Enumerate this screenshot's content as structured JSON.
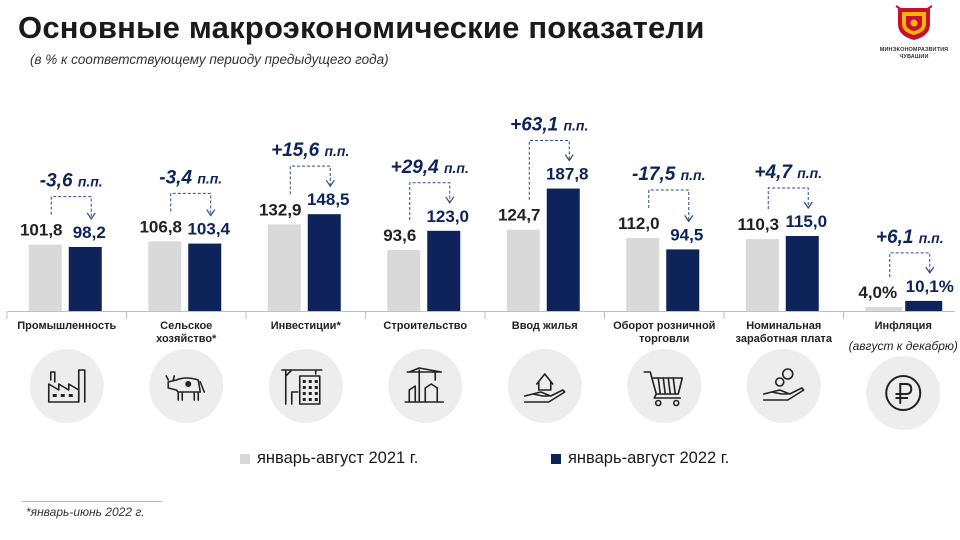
{
  "title": "Основные макроэкономические показатели",
  "subtitle": "(в % к соответствующему периоду предыдущего года)",
  "logo": {
    "line1": "МИНЭКОНОМРАЗВИТИЯ",
    "line2": "ЧУВАШИИ"
  },
  "footnote": "*январь-июнь  2022 г.",
  "legend": {
    "s1": "январь-август 2021 г.",
    "s2": "январь-август 2022 г."
  },
  "colors": {
    "s1": "#d9d9d9",
    "s2": "#0d2359",
    "arrow": "#2e4a82",
    "circle": "#ededed"
  },
  "chart_data": {
    "type": "bar",
    "categories": [
      "Промышленность",
      "Сельское хозяйство*",
      "Инвестиции*",
      "Строительство",
      "Ввод жилья",
      "Оборот  розничной торговли",
      "Номинальная заработная плата",
      "Инфляция"
    ],
    "category_lines": [
      [
        "Промышленность"
      ],
      [
        "Сельское",
        "хозяйство*"
      ],
      [
        "Инвестиции*"
      ],
      [
        "Строительство"
      ],
      [
        "Ввод жилья"
      ],
      [
        "Оборот  розничной",
        "торговли"
      ],
      [
        "Номинальная",
        "заработная плата"
      ],
      [
        "Инфляция"
      ]
    ],
    "category_note": "(август к декабрю)",
    "series": [
      {
        "name": "январь-август 2021 г.",
        "values": [
          101.8,
          106.8,
          132.9,
          93.6,
          124.7,
          112.0,
          110.3,
          4.0
        ],
        "labels": [
          "101,8",
          "106,8",
          "132,9",
          "93,6",
          "124,7",
          "112,0",
          "110,3",
          "4,0%"
        ]
      },
      {
        "name": "январь-август 2022 г.",
        "values": [
          98.2,
          103.4,
          148.5,
          123.0,
          187.8,
          94.5,
          115.0,
          10.1
        ],
        "labels": [
          "98,2",
          "103,4",
          "148,5",
          "123,0",
          "187,8",
          "94,5",
          "115,0",
          "10,1%"
        ]
      }
    ],
    "changes": [
      {
        "value": "-3,6",
        "unit": "п.п."
      },
      {
        "value": "-3,4",
        "unit": "п.п."
      },
      {
        "value": "+15,6",
        "unit": "п.п."
      },
      {
        "value": "+29,4",
        "unit": "п.п."
      },
      {
        "value": "+63,1",
        "unit": "п.п."
      },
      {
        "value": "-17,5",
        "unit": "п.п."
      },
      {
        "value": "+4,7",
        "unit": "п.п."
      },
      {
        "value": "+6,1",
        "unit": "п.п."
      }
    ],
    "icons": [
      "factory-icon",
      "cow-icon",
      "construction-building-icon",
      "crane-icon",
      "house-in-hand-icon",
      "shopping-cart-icon",
      "money-in-hand-icon",
      "ruble-icon"
    ]
  }
}
